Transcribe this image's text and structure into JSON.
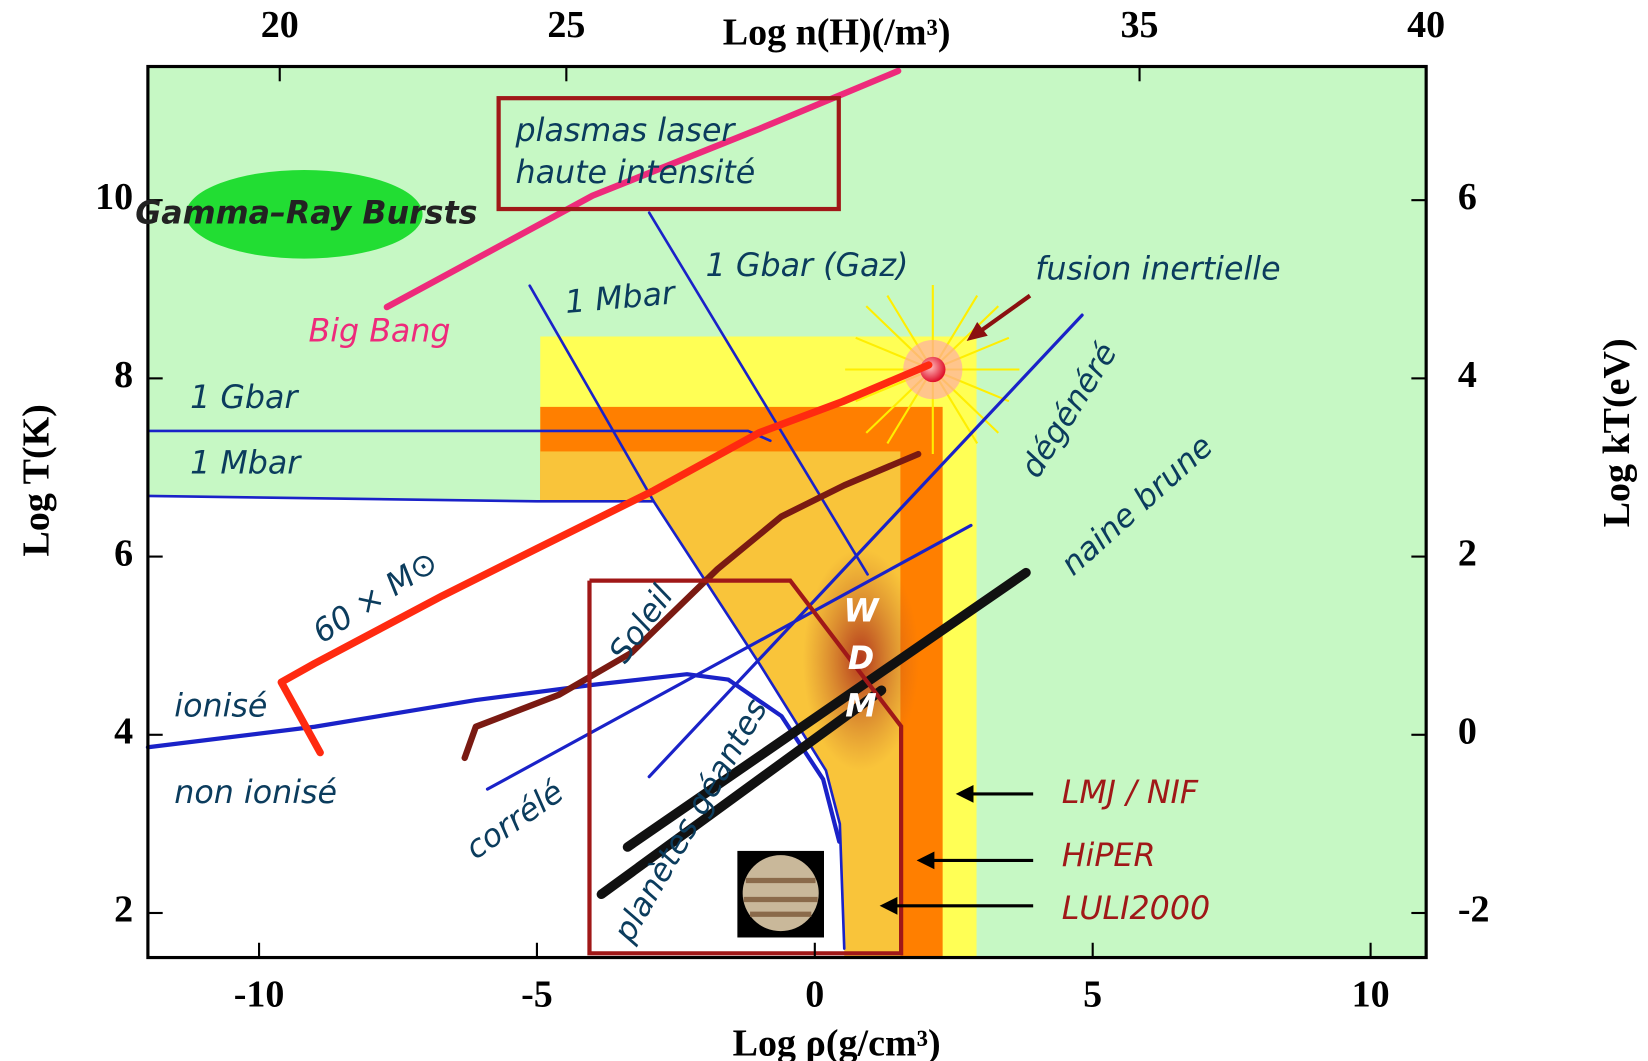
{
  "chart_data": {
    "type": "line",
    "xlabel": "Log ρ(g/cm³)",
    "ylabel": "Log T(K)",
    "x2label": "Log n(H)(/m³)",
    "y2label": "Log kT(eV)",
    "xlim": [
      -12,
      11
    ],
    "xticks": [
      -10,
      -5,
      0,
      5,
      10
    ],
    "ylim": [
      1.5,
      11.5
    ],
    "yticks": [
      2,
      4,
      6,
      8,
      10
    ],
    "x2lim": [
      17.7,
      40
    ],
    "x2ticks": [
      20,
      25,
      35,
      40
    ],
    "y2lim": [
      -2.5,
      7.5
    ],
    "y2ticks": [
      -2,
      0,
      2,
      4,
      6
    ],
    "background": "#c6f8c4",
    "regions": [
      {
        "label": "LMJ / NIF",
        "color": "#ffff55",
        "x": [
          -4.94,
          2.91
        ],
        "y_top": 8.47
      },
      {
        "label": "HiPER",
        "color": "#ff7f00",
        "x": [
          -4.94,
          2.3
        ],
        "y_top": 7.68
      },
      {
        "label": "LULI2000",
        "color": "#f9c43a",
        "x": [
          -4.94,
          1.54
        ],
        "y_top": 7.18
      }
    ],
    "curves": [
      {
        "color": "#ffffff",
        "width": 2,
        "fill_below": true,
        "x": [
          -12,
          -5,
          -2.9,
          -1.0,
          0.2,
          0.45,
          0.53
        ],
        "y": [
          6.68,
          6.62,
          6.62,
          4.8,
          3.6,
          3.0,
          1.6
        ]
      },
      {
        "color": "#ee2a7b",
        "width": 6,
        "x": [
          -7.7,
          -4,
          -1,
          1.5
        ],
        "y": [
          8.8,
          10.05,
          10.8,
          11.45
        ]
      },
      {
        "color": "#1a22c8",
        "width": 2.5,
        "x": [
          -12,
          -1.2,
          -0.8
        ],
        "y": [
          7.41,
          7.41,
          7.3
        ]
      },
      {
        "color": "#1a22c8",
        "width": 2.5,
        "x": [
          -2.98,
          0.95
        ],
        "y": [
          9.86,
          5.8
        ]
      },
      {
        "color": "#1a22c8",
        "width": 2.5,
        "x": [
          -12,
          -5,
          -2.9,
          -1.0,
          0.2,
          0.45,
          0.53
        ],
        "y": [
          6.68,
          6.62,
          6.62,
          4.8,
          3.6,
          3.0,
          1.6
        ]
      },
      {
        "color": "#1a22c8",
        "width": 2.5,
        "x": [
          -5.13,
          -2.9
        ],
        "y": [
          9.04,
          6.62
        ]
      },
      {
        "color": "#1a22c8",
        "width": 4,
        "x": [
          -12,
          -9.0,
          -6.1,
          -4.0,
          -2.3,
          -1.56,
          -0.6,
          0.15,
          0.44
        ],
        "y": [
          3.86,
          4.09,
          4.39,
          4.56,
          4.68,
          4.62,
          4.21,
          3.5,
          2.8
        ]
      },
      {
        "color": "#1a22c8",
        "width": 3,
        "x": [
          -5.89,
          2.81
        ],
        "y": [
          3.39,
          6.35
        ]
      },
      {
        "color": "#1a22c8",
        "width": 3,
        "x": [
          -2.98,
          4.81
        ],
        "y": [
          3.53,
          8.71
        ]
      },
      {
        "color": "#ff2a10",
        "width": 7,
        "x": [
          -8.9,
          -9.6,
          -9.0,
          -6.7,
          -5.0,
          -2.9,
          -1.0,
          0.5,
          2.05
        ],
        "y": [
          3.8,
          4.59,
          4.8,
          5.56,
          6.09,
          6.74,
          7.39,
          7.74,
          8.15
        ]
      },
      {
        "color": "#7a1a12",
        "width": 6,
        "x": [
          -6.3,
          -6.1,
          -4.6,
          -3.3,
          -1.75,
          -0.6,
          0.53,
          1.86
        ],
        "y": [
          3.74,
          4.09,
          4.45,
          4.92,
          5.86,
          6.45,
          6.8,
          7.15
        ]
      },
      {
        "color": "#111111",
        "width": 9,
        "x": [
          -3.84,
          1.2
        ],
        "y": [
          2.21,
          4.5
        ]
      },
      {
        "color": "#111111",
        "width": 9,
        "x": [
          -3.37,
          3.8
        ],
        "y": [
          2.74,
          5.82
        ]
      }
    ],
    "annotations": [
      {
        "text": "Gamma–Ray Bursts",
        "color": "#222222"
      },
      {
        "text": "Big Bang",
        "color": "#ee2a7b"
      },
      {
        "text": "plasmas laser",
        "color": "#0b3c5d"
      },
      {
        "text": "haute intensité",
        "color": "#0b3c5d"
      },
      {
        "text": "1 Gbar (Gaz)",
        "color": "#0b3c5d"
      },
      {
        "text": "1 Mbar",
        "color": "#0b3c5d"
      },
      {
        "text": "fusion inertielle",
        "color": "#0b3c5d"
      },
      {
        "text": "1 Gbar",
        "color": "#0b3c5d"
      },
      {
        "text": "1 Mbar",
        "color": "#0b3c5d"
      },
      {
        "text": "dégénéré",
        "color": "#0b3c5d"
      },
      {
        "text": "naine brune",
        "color": "#0b3c5d"
      },
      {
        "text": "60 × M⊙",
        "color": "#0b3c5d"
      },
      {
        "text": "Soleil",
        "color": "#0b3c5d"
      },
      {
        "text": "ionisé",
        "color": "#0b3c5d"
      },
      {
        "text": "non ionisé",
        "color": "#0b3c5d"
      },
      {
        "text": "corrélé",
        "color": "#0b3c5d"
      },
      {
        "text": "planètes géantes",
        "color": "#0b3c5d"
      },
      {
        "text": "W",
        "color": "#ffffff"
      },
      {
        "text": "D",
        "color": "#ffffff"
      },
      {
        "text": "M",
        "color": "#ffffff"
      }
    ]
  }
}
